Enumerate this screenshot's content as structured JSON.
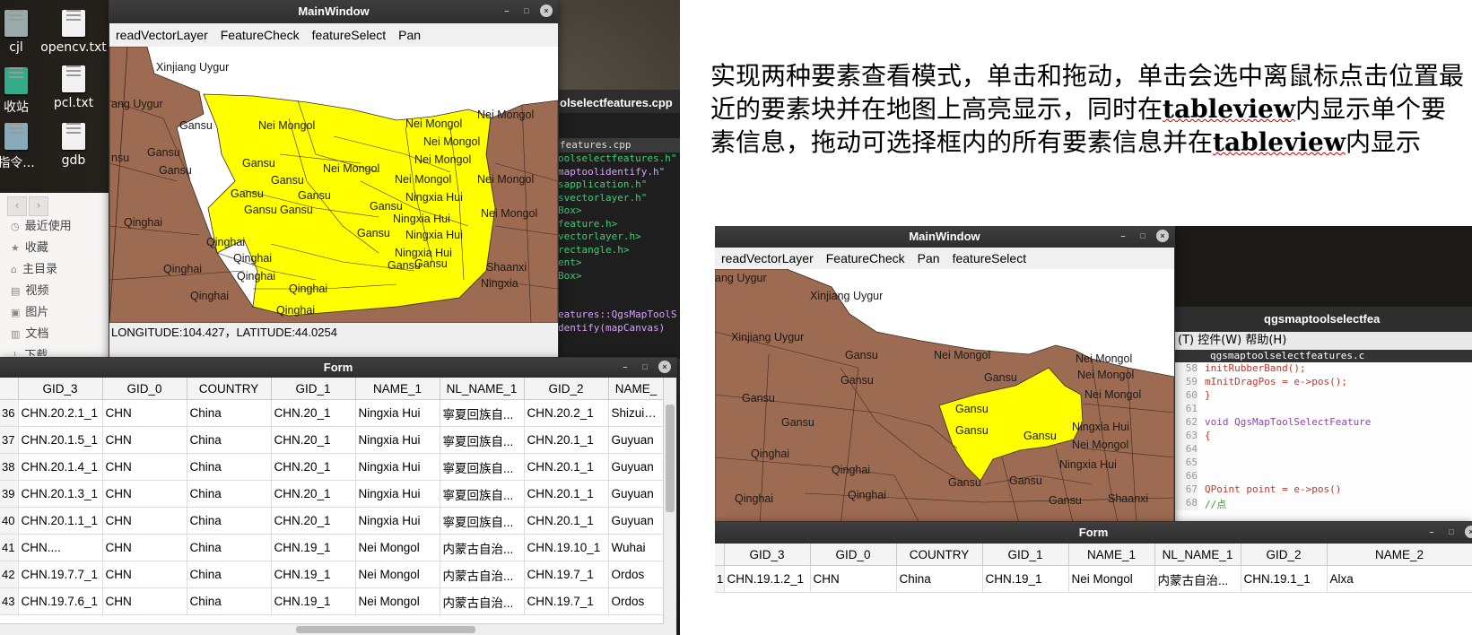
{
  "desktop": {
    "icons": [
      {
        "label": "cjl"
      },
      {
        "label": "opencv.txt"
      },
      {
        "label": "收站"
      },
      {
        "label": "pcl.txt"
      },
      {
        "label": "指令..."
      },
      {
        "label": "gdb"
      }
    ],
    "file_manager": {
      "nav_back": "‹",
      "nav_forward": "›",
      "items": [
        "最近使用",
        "收藏",
        "主目录",
        "视频",
        "图片",
        "文档",
        "下载"
      ]
    },
    "code_editor": {
      "tab_title": "olselectfeatures.cpp",
      "file_tab": "features.cpp",
      "lines": [
        "oolselectfeatures.h\"",
        "maptoolidentify.h\"",
        "sapplication.h\"",
        "svectorlayer.h\"",
        "Box>",
        "feature.h>",
        "vectorlayer.h>",
        "rectangle.h>",
        "ent>",
        "Box>",
        "",
        "",
        "eatures::QgsMapToolS",
        "dentify(mapCanvas)"
      ]
    }
  },
  "main_window": {
    "title": "MainWindow",
    "menu": [
      "readVectorLayer",
      "FeatureCheck",
      "featureSelect",
      "Pan"
    ],
    "status": "LONGITUDE:104.427，LATITUDE:44.0254",
    "map_labels": [
      "Xinjiang Uygur",
      "ang Uygur",
      "Gansu",
      "Gansu",
      "Gansu",
      "nsu",
      "Nei Mongol",
      "Nei Mongol",
      "Nei Mongol",
      "Nei Mongol",
      "Nei Mongol",
      "Nei Mongol",
      "Nei Mongol",
      "Nei Mongol",
      "Gansu",
      "Gansu",
      "Gansu",
      "Gansu",
      "Gansu",
      "Gansu",
      "Ningxia Hui",
      "Ningxia Hui",
      "Ningxia Hui",
      "Ningxia Hui",
      "Nei Mongol",
      "Qinghai",
      "Qinghai",
      "Qinghai",
      "Qinghai",
      "Qinghai",
      "Qinghai",
      "Gansu",
      "Gansu",
      "Gansu",
      "Gansu",
      "Shaanxi",
      "Ningxia",
      "Qinghai",
      "Qinghai"
    ]
  },
  "form_window": {
    "title": "Form",
    "columns": [
      "GID_3",
      "GID_0",
      "COUNTRY",
      "GID_1",
      "NAME_1",
      "NL_NAME_1",
      "GID_2",
      "NAME_"
    ],
    "rows": [
      {
        "n": "36",
        "cells": [
          "CHN.20.2.1_1",
          "CHN",
          "China",
          "CHN.20_1",
          "Ningxia Hui",
          "寧夏回族自...",
          "CHN.20.2_1",
          "Shizuishan"
        ]
      },
      {
        "n": "37",
        "cells": [
          "CHN.20.1.5_1",
          "CHN",
          "China",
          "CHN.20_1",
          "Ningxia Hui",
          "寧夏回族自...",
          "CHN.20.1_1",
          "Guyuan"
        ]
      },
      {
        "n": "38",
        "cells": [
          "CHN.20.1.4_1",
          "CHN",
          "China",
          "CHN.20_1",
          "Ningxia Hui",
          "寧夏回族自...",
          "CHN.20.1_1",
          "Guyuan"
        ]
      },
      {
        "n": "39",
        "cells": [
          "CHN.20.1.3_1",
          "CHN",
          "China",
          "CHN.20_1",
          "Ningxia Hui",
          "寧夏回族自...",
          "CHN.20.1_1",
          "Guyuan"
        ]
      },
      {
        "n": "40",
        "cells": [
          "CHN.20.1.1_1",
          "CHN",
          "China",
          "CHN.20_1",
          "Ningxia Hui",
          "寧夏回族自...",
          "CHN.20.1_1",
          "Guyuan"
        ]
      },
      {
        "n": "41",
        "cells": [
          "CHN....",
          "CHN",
          "China",
          "CHN.19_1",
          "Nei Mongol",
          "内蒙古自治...",
          "CHN.19.10_1",
          "Wuhai"
        ]
      },
      {
        "n": "42",
        "cells": [
          "CHN.19.7.7_1",
          "CHN",
          "China",
          "CHN.19_1",
          "Nei Mongol",
          "内蒙古自治...",
          "CHN.19.7_1",
          "Ordos"
        ]
      },
      {
        "n": "43",
        "cells": [
          "CHN.19.7.6_1",
          "CHN",
          "China",
          "CHN.19_1",
          "Nei Mongol",
          "内蒙古自治...",
          "CHN.19.7_1",
          "Ordos"
        ]
      }
    ]
  },
  "description": {
    "part1": "实现两种要素查看模式，单击和拖动，单击会选中离鼠标点击位置最近的要素块并在地图上高亮显示，同时在",
    "kw1": "tableview",
    "part2": "内显示单个要素信息，拖动可选择框内的所有要素信息并在",
    "kw2": "tableview",
    "part3": "内显示"
  },
  "screenshot2": {
    "main_window": {
      "title": "MainWindow",
      "menu": [
        "readVectorLayer",
        "FeatureCheck",
        "Pan",
        "featureSelect"
      ],
      "map_labels": [
        "ang Uygur",
        "Xinjiang Uygur",
        "Xinjiang Uygur",
        "Gansu",
        "Gansu",
        "Gansu",
        "Gansu",
        "Gansu",
        "Nei Mongol",
        "Nei Mongol",
        "Nei Mongol",
        "Nei Mongol",
        "Nei Mongol",
        "Gansu",
        "Gansu",
        "Gansu",
        "Ningxia Hui",
        "Ningxia Hui",
        "Qinghai",
        "Qinghai",
        "Qinghai",
        "Qinghai",
        "Gansu",
        "Gansu",
        "Shaanxi",
        "Gansu"
      ]
    },
    "editor": {
      "title": "qgsmaptoolselectfea",
      "menu": "(T)  控件(W)  帮助(H)",
      "tab": "qgsmaptoolselectfeatures.c",
      "lines": [
        {
          "n": "58",
          "code": "    initRubberBand();"
        },
        {
          "n": "59",
          "code": "  mInitDragPos = e->pos();"
        },
        {
          "n": "60",
          "code": "}"
        },
        {
          "n": "61",
          "code": ""
        },
        {
          "n": "62",
          "code": "void QgsMapToolSelectFeature"
        },
        {
          "n": "63",
          "code": "{"
        },
        {
          "n": "64",
          "code": ""
        },
        {
          "n": "65",
          "code": ""
        },
        {
          "n": "66",
          "code": ""
        },
        {
          "n": "67",
          "code": "  QPoint point = e->pos()"
        },
        {
          "n": "68",
          "code": "  //点"
        }
      ]
    },
    "form": {
      "title": "Form",
      "columns": [
        "GID_3",
        "GID_0",
        "COUNTRY",
        "GID_1",
        "NAME_1",
        "NL_NAME_1",
        "GID_2",
        "NAME_2"
      ],
      "rows": [
        {
          "n": "1",
          "cells": [
            "CHN.19.1.2_1",
            "CHN",
            "China",
            "CHN.19_1",
            "Nei Mongol",
            "内蒙古自治...",
            "CHN.19.1_1",
            "Alxa"
          ]
        }
      ]
    }
  },
  "colors": {
    "map_base": "#9c6b52",
    "map_selected": "#ffff00",
    "border": "#3b2a20"
  }
}
